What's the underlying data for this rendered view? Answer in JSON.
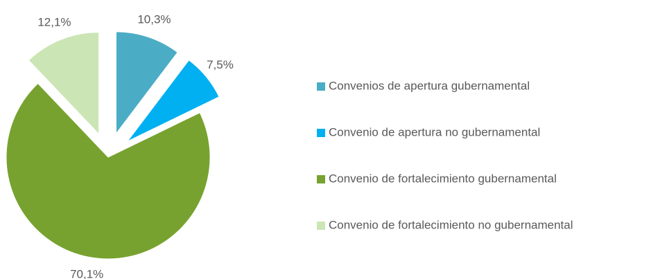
{
  "chart_data": {
    "type": "pie",
    "categories": [
      "Convenios de apertura gubernamental",
      "Convenio de apertura no gubernamental",
      "Convenio de fortalecimiento gubernamental",
      "Convenio de fortalecimiento no gubernamental"
    ],
    "values": [
      10.3,
      7.5,
      70.1,
      12.1
    ],
    "value_labels": [
      "10,3%",
      "7,5%",
      "70,1%",
      "12,1%"
    ],
    "colors": [
      "#4bacc6",
      "#00b0f0",
      "#77a22f",
      "#cbe5b4"
    ],
    "legend": "right"
  }
}
